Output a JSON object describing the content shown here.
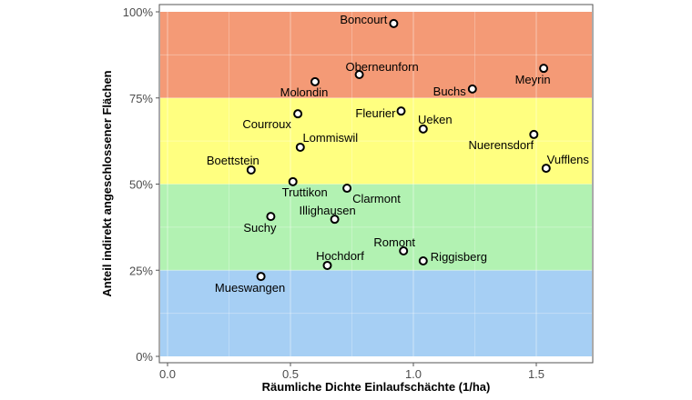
{
  "chart_data": {
    "type": "scatter",
    "xlabel": "Räumliche Dichte Einlaufschächte (1/ha)",
    "ylabel": "Anteil indirekt angeschlossener Flächen",
    "xlim": [
      -0.03,
      1.73
    ],
    "ylim": [
      -0.02,
      1.02
    ],
    "x_ticks": [
      0.0,
      0.5,
      1.0,
      1.5
    ],
    "x_tick_labels": [
      "0.0",
      "0.5",
      "1.0",
      "1.5"
    ],
    "y_ticks": [
      0,
      0.25,
      0.5,
      0.75,
      1.0
    ],
    "y_tick_labels": [
      "0%",
      "25%",
      "50%",
      "75%",
      "100%"
    ],
    "grid": true,
    "bands": [
      {
        "from": 0,
        "to": 0.25,
        "color": "#a6cff4"
      },
      {
        "from": 0.25,
        "to": 0.5,
        "color": "#b2f2b2"
      },
      {
        "from": 0.5,
        "to": 0.75,
        "color": "#ffff80"
      },
      {
        "from": 0.75,
        "to": 1.0,
        "color": "#f49a76"
      }
    ],
    "points": [
      {
        "label": "Boncourt",
        "x": 0.92,
        "y": 0.966
      },
      {
        "label": "Meyrin",
        "x": 1.53,
        "y": 0.836
      },
      {
        "label": "Oberneunforn",
        "x": 0.78,
        "y": 0.818
      },
      {
        "label": "Molondin",
        "x": 0.6,
        "y": 0.797
      },
      {
        "label": "Buchs",
        "x": 1.24,
        "y": 0.776
      },
      {
        "label": "Fleurier",
        "x": 0.95,
        "y": 0.712
      },
      {
        "label": "Courroux",
        "x": 0.53,
        "y": 0.704
      },
      {
        "label": "Ueken",
        "x": 1.04,
        "y": 0.66
      },
      {
        "label": "Nuerensdorf",
        "x": 1.49,
        "y": 0.644
      },
      {
        "label": "Lommiswil",
        "x": 0.54,
        "y": 0.607
      },
      {
        "label": "Vufflens",
        "x": 1.54,
        "y": 0.546
      },
      {
        "label": "Boettstein",
        "x": 0.34,
        "y": 0.541
      },
      {
        "label": "Truttikon",
        "x": 0.51,
        "y": 0.507
      },
      {
        "label": "Clarmont",
        "x": 0.73,
        "y": 0.488
      },
      {
        "label": "Suchy",
        "x": 0.42,
        "y": 0.406
      },
      {
        "label": "Illighausen",
        "x": 0.68,
        "y": 0.398
      },
      {
        "label": "Romont",
        "x": 0.96,
        "y": 0.306
      },
      {
        "label": "Riggisberg",
        "x": 1.04,
        "y": 0.277
      },
      {
        "label": "Hochdorf",
        "x": 0.65,
        "y": 0.264
      },
      {
        "label": "Mueswangen",
        "x": 0.38,
        "y": 0.232
      }
    ],
    "point_fill": "#ffffff",
    "point_stroke": "#000000"
  }
}
